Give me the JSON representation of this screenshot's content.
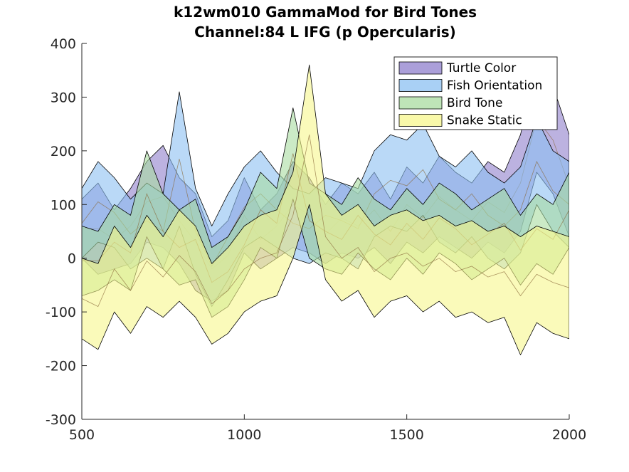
{
  "chart_data": {
    "type": "area",
    "title": [
      "k12wm010 GammaMod for Bird Tones",
      "Channel:84 L IFG (p Opercularis)"
    ],
    "xlabel": "",
    "ylabel": "",
    "xlim": [
      500,
      2000
    ],
    "ylim": [
      -300,
      400
    ],
    "xticks": [
      500,
      1000,
      1500,
      2000
    ],
    "yticks": [
      -300,
      -200,
      -100,
      0,
      100,
      200,
      300,
      400
    ],
    "legend_position": "top-right",
    "grid": false,
    "series": [
      {
        "name": "Turtle Color",
        "color": "#8F7FCC",
        "x": [
          500,
          550,
          600,
          650,
          700,
          750,
          800,
          850,
          900,
          950,
          1000,
          1050,
          1100,
          1150,
          1200,
          1250,
          1300,
          1350,
          1400,
          1450,
          1500,
          1550,
          1600,
          1650,
          1700,
          1750,
          1800,
          1850,
          1900,
          1950,
          2000
        ],
        "upper": [
          110,
          140,
          90,
          130,
          180,
          210,
          150,
          120,
          40,
          70,
          150,
          90,
          120,
          180,
          150,
          100,
          140,
          120,
          160,
          110,
          170,
          140,
          190,
          160,
          140,
          180,
          160,
          230,
          360,
          320,
          230
        ],
        "lower": [
          0,
          -30,
          -20,
          -10,
          30,
          20,
          -10,
          -60,
          -80,
          -60,
          10,
          -20,
          0,
          20,
          10,
          -10,
          10,
          0,
          20,
          -10,
          30,
          10,
          40,
          20,
          0,
          30,
          10,
          50,
          160,
          120,
          40
        ]
      },
      {
        "name": "Fish Orientation",
        "color": "#8CC0F2",
        "x": [
          500,
          550,
          600,
          650,
          700,
          750,
          800,
          850,
          900,
          950,
          1000,
          1050,
          1100,
          1150,
          1200,
          1250,
          1300,
          1350,
          1400,
          1450,
          1500,
          1550,
          1600,
          1650,
          1700,
          1750,
          1800,
          1850,
          1900,
          1950,
          2000
        ],
        "upper": [
          130,
          180,
          150,
          110,
          140,
          120,
          310,
          130,
          60,
          120,
          170,
          200,
          160,
          130,
          120,
          150,
          140,
          130,
          200,
          230,
          220,
          250,
          190,
          170,
          200,
          160,
          140,
          170,
          260,
          200,
          180
        ],
        "lower": [
          0,
          30,
          20,
          -20,
          0,
          -20,
          60,
          -30,
          -90,
          -40,
          20,
          40,
          20,
          0,
          -10,
          10,
          0,
          -20,
          40,
          60,
          50,
          80,
          30,
          10,
          40,
          0,
          -20,
          10,
          100,
          50,
          20
        ]
      },
      {
        "name": "Bird Tone",
        "color": "#A9DCA0",
        "x": [
          500,
          550,
          600,
          650,
          700,
          750,
          800,
          850,
          900,
          950,
          1000,
          1050,
          1100,
          1150,
          1200,
          1250,
          1300,
          1350,
          1400,
          1450,
          1500,
          1550,
          1600,
          1650,
          1700,
          1750,
          1800,
          1850,
          1900,
          1950,
          2000
        ],
        "upper": [
          60,
          50,
          100,
          80,
          200,
          120,
          90,
          110,
          20,
          40,
          90,
          160,
          130,
          280,
          140,
          120,
          100,
          150,
          110,
          90,
          130,
          100,
          140,
          120,
          90,
          110,
          130,
          80,
          120,
          100,
          160
        ],
        "lower": [
          -70,
          -60,
          -40,
          -60,
          40,
          -20,
          -50,
          -40,
          -110,
          -90,
          -40,
          20,
          0,
          110,
          0,
          -20,
          -30,
          10,
          -20,
          -40,
          0,
          -30,
          10,
          -10,
          -40,
          -20,
          0,
          -50,
          -10,
          -30,
          20
        ]
      },
      {
        "name": "Snake Static",
        "color": "#F7F78C",
        "x": [
          500,
          550,
          600,
          650,
          700,
          750,
          800,
          850,
          900,
          950,
          1000,
          1050,
          1100,
          1150,
          1200,
          1250,
          1300,
          1350,
          1400,
          1450,
          1500,
          1550,
          1600,
          1650,
          1700,
          1750,
          1800,
          1850,
          1900,
          1950,
          2000
        ],
        "upper": [
          0,
          -10,
          60,
          20,
          80,
          40,
          90,
          60,
          -10,
          20,
          60,
          80,
          90,
          160,
          360,
          120,
          80,
          100,
          60,
          80,
          90,
          70,
          80,
          60,
          70,
          50,
          60,
          40,
          60,
          50,
          40
        ],
        "lower": [
          -150,
          -170,
          -100,
          -140,
          -90,
          -110,
          -80,
          -110,
          -160,
          -140,
          -100,
          -80,
          -70,
          0,
          100,
          -40,
          -80,
          -60,
          -110,
          -80,
          -70,
          -100,
          -80,
          -110,
          -100,
          -120,
          -110,
          -180,
          -120,
          -140,
          -150
        ]
      }
    ]
  }
}
